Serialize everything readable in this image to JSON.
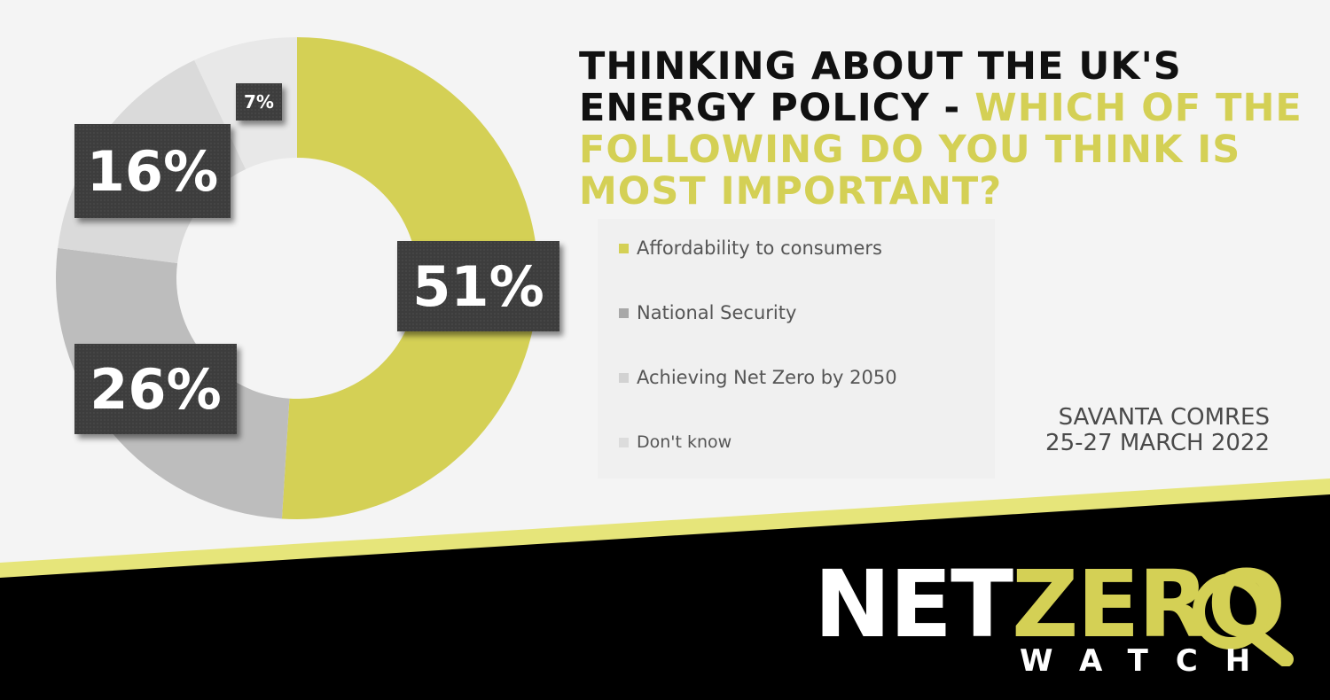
{
  "title": {
    "part1": "THINKING ABOUT THE UK'S ENERGY POLICY -",
    "part2": "WHICH OF THE FOLLOWING DO YOU THINK IS MOST IMPORTANT?"
  },
  "chart_data": {
    "type": "pie",
    "variant": "donut",
    "categories": [
      "Affordability to consumers",
      "National Security",
      "Achieving Net Zero by 2050",
      "Don't know"
    ],
    "values": [
      51,
      26,
      16,
      7
    ],
    "labels": [
      "51%",
      "26%",
      "16%",
      "7%"
    ],
    "colors": [
      "#d4d055",
      "#bdbdbd",
      "#dadada",
      "#e8e8e8"
    ],
    "legend_position": "right"
  },
  "source": {
    "line1": "SAVANTA COMRES",
    "line2": "25-27 MARCH 2022"
  },
  "logo": {
    "word1": "NET",
    "word2": "ZERO",
    "word3": "WATCH"
  },
  "colors": {
    "accent": "#d4d055",
    "dark": "#000000",
    "label_bg": "#3d3d3d"
  }
}
